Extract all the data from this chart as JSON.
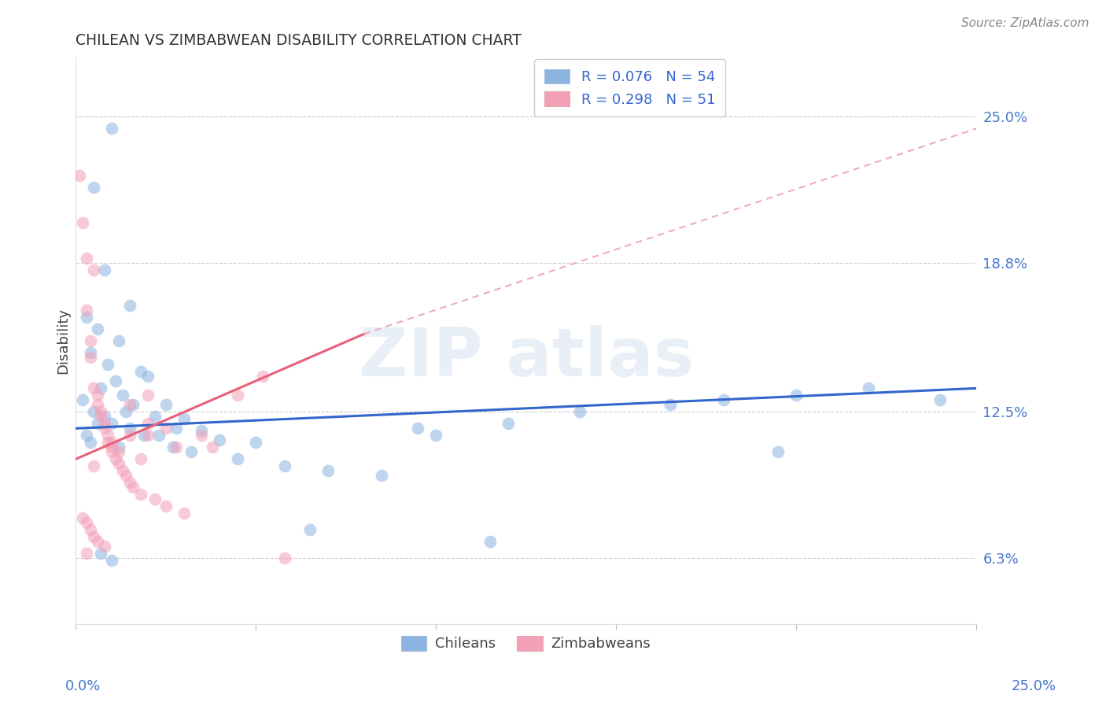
{
  "title": "CHILEAN VS ZIMBABWEAN DISABILITY CORRELATION CHART",
  "source": "Source: ZipAtlas.com",
  "ylabel": "Disability",
  "ytick_labels": [
    "6.3%",
    "12.5%",
    "18.8%",
    "25.0%"
  ],
  "ytick_values": [
    6.3,
    12.5,
    18.8,
    25.0
  ],
  "xlim": [
    0.0,
    25.0
  ],
  "ylim": [
    3.5,
    27.5
  ],
  "watermark_text": "ZIP atlas",
  "legend_line1": "R = 0.076   N = 54",
  "legend_line2": "R = 0.298   N = 51",
  "blue_scatter_color": "#8BB4E0",
  "pink_scatter_color": "#F4A0B8",
  "blue_line_color": "#3366CC",
  "pink_solid_color": "#E8607A",
  "pink_dash_color": "#F0AABB",
  "legend_patch_blue": "#8BB4E0",
  "legend_patch_pink": "#F4A0B8",
  "blue_line_start_y": 11.8,
  "blue_line_end_y": 13.5,
  "pink_line_start_y": 10.5,
  "pink_line_solid_end_x": 8.0,
  "pink_line_solid_end_y": 15.8,
  "pink_line_dash_end_x": 25.0,
  "pink_line_dash_end_y": 24.5,
  "chilean_x": [
    1.0,
    0.5,
    0.8,
    1.5,
    0.3,
    0.6,
    1.2,
    0.4,
    0.9,
    1.8,
    2.0,
    1.1,
    0.7,
    1.3,
    0.2,
    1.6,
    2.5,
    0.5,
    1.4,
    0.8,
    2.2,
    3.0,
    1.0,
    0.6,
    1.5,
    2.8,
    3.5,
    0.3,
    1.9,
    2.3,
    4.0,
    5.0,
    1.2,
    2.7,
    3.2,
    4.5,
    5.8,
    7.0,
    8.5,
    10.0,
    12.0,
    14.0,
    16.5,
    18.0,
    20.0,
    22.0,
    9.5,
    6.5,
    11.5,
    0.4,
    0.7,
    1.0,
    24.0,
    19.5
  ],
  "chilean_y": [
    24.5,
    22.0,
    18.5,
    17.0,
    16.5,
    16.0,
    15.5,
    15.0,
    14.5,
    14.2,
    14.0,
    13.8,
    13.5,
    13.2,
    13.0,
    12.8,
    12.8,
    12.5,
    12.5,
    12.3,
    12.3,
    12.2,
    12.0,
    12.0,
    11.8,
    11.8,
    11.7,
    11.5,
    11.5,
    11.5,
    11.3,
    11.2,
    11.0,
    11.0,
    10.8,
    10.5,
    10.2,
    10.0,
    9.8,
    11.5,
    12.0,
    12.5,
    12.8,
    13.0,
    13.2,
    13.5,
    11.8,
    7.5,
    7.0,
    11.2,
    6.5,
    6.2,
    13.0,
    10.8
  ],
  "zimbabwean_x": [
    0.1,
    0.2,
    0.3,
    0.3,
    0.4,
    0.4,
    0.5,
    0.5,
    0.6,
    0.6,
    0.7,
    0.7,
    0.8,
    0.8,
    0.9,
    0.9,
    1.0,
    1.0,
    1.1,
    1.2,
    1.3,
    1.4,
    1.5,
    1.5,
    1.6,
    1.8,
    2.0,
    2.0,
    2.2,
    2.5,
    2.8,
    3.0,
    3.5,
    0.2,
    0.3,
    0.4,
    0.5,
    0.6,
    0.8,
    1.0,
    1.2,
    1.5,
    1.8,
    2.0,
    2.5,
    4.5,
    3.8,
    5.2,
    0.3,
    0.5,
    5.8
  ],
  "zimbabwean_y": [
    22.5,
    20.5,
    19.0,
    16.8,
    15.5,
    14.8,
    13.5,
    18.5,
    13.2,
    12.8,
    12.5,
    12.3,
    12.0,
    11.8,
    11.5,
    11.2,
    11.0,
    10.8,
    10.5,
    10.3,
    10.0,
    9.8,
    9.5,
    12.8,
    9.3,
    9.0,
    11.5,
    13.2,
    8.8,
    8.5,
    11.0,
    8.2,
    11.5,
    8.0,
    7.8,
    7.5,
    7.2,
    7.0,
    6.8,
    11.2,
    10.8,
    11.5,
    10.5,
    12.0,
    11.8,
    13.2,
    11.0,
    14.0,
    6.5,
    10.2,
    6.3
  ]
}
